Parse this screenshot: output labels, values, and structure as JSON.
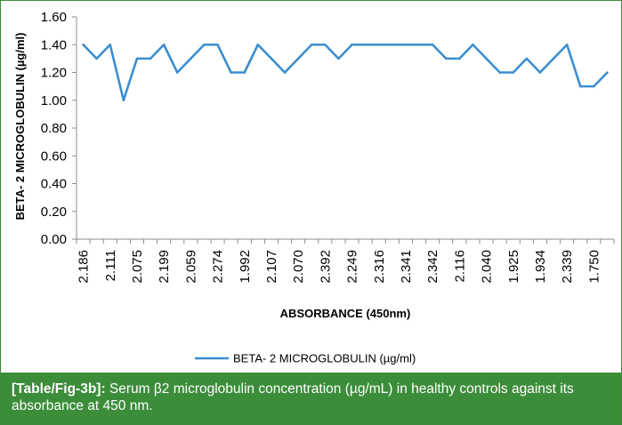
{
  "chart_data": {
    "type": "line",
    "ylabel": "BETA- 2 MICROGLOBULIN (µg/ml)",
    "xlabel": "ABSORBANCE (450nm)",
    "ylim": [
      0,
      1.6
    ],
    "yticks": [
      "0.00",
      "0.20",
      "0.40",
      "0.60",
      "0.80",
      "1.00",
      "1.20",
      "1.40",
      "1.60"
    ],
    "categories": [
      "2.186",
      "",
      "2.111",
      "",
      "2.075",
      "",
      "2.199",
      "",
      "2.059",
      "",
      "2.274",
      "",
      "1.992",
      "",
      "2.107",
      "",
      "2.070",
      "",
      "2.392",
      "",
      "2.249",
      "",
      "2.316",
      "",
      "2.341",
      "",
      "2.342",
      "",
      "2.116",
      "",
      "2.040",
      "",
      "1.925",
      "",
      "1.934",
      "",
      "2.339",
      "",
      "1.750",
      ""
    ],
    "series": [
      {
        "name": "BETA- 2 MICROGLOBULIN (µg/ml)",
        "color": "#3b8ed0",
        "values": [
          1.4,
          1.3,
          1.4,
          1.0,
          1.3,
          1.3,
          1.4,
          1.2,
          1.3,
          1.4,
          1.4,
          1.2,
          1.2,
          1.4,
          1.3,
          1.2,
          1.3,
          1.4,
          1.4,
          1.3,
          1.4,
          1.4,
          1.4,
          1.4,
          1.4,
          1.4,
          1.4,
          1.3,
          1.3,
          1.4,
          1.3,
          1.2,
          1.2,
          1.3,
          1.2,
          1.3,
          1.4,
          1.1,
          1.1,
          1.2
        ]
      }
    ],
    "legend_position": "bottom",
    "grid": false
  },
  "caption": {
    "label": "[Table/Fig-3b]:",
    "text": " Serum β2 microglobulin concentration (µg/mL) in healthy controls against its absorbance at 450 nm."
  }
}
